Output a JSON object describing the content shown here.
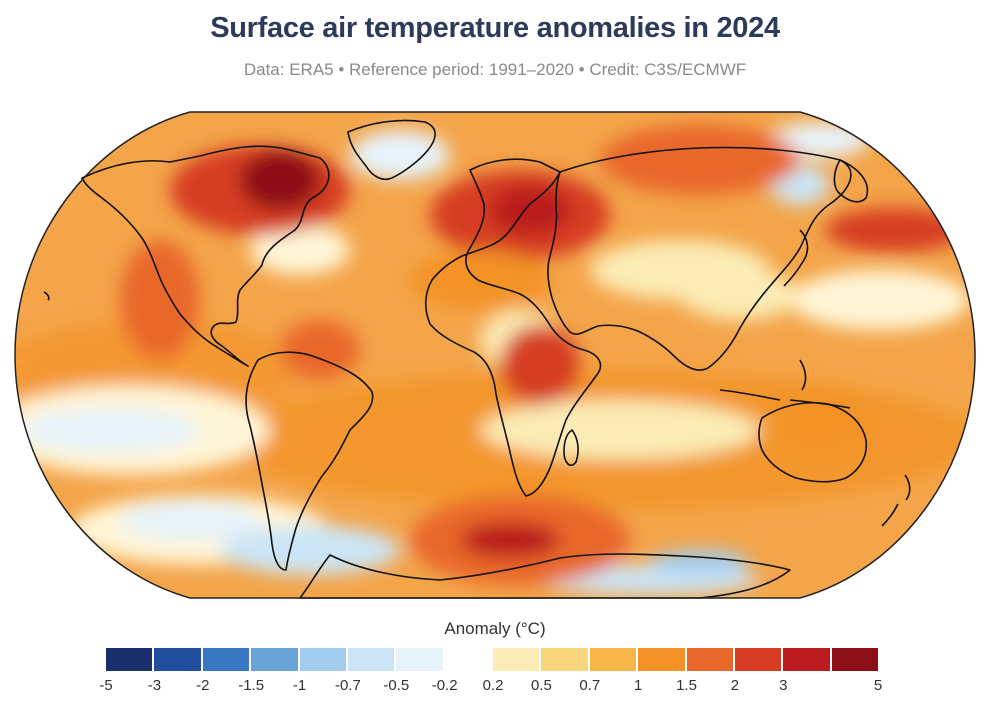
{
  "title": "Surface air temperature anomalies in 2024",
  "subtitle": "Data: ERA5 • Reference period: 1991–2020 • Credit: C3S/ECMWF",
  "legend": {
    "title": "Anomaly (°C)",
    "ticks": [
      "-5",
      "-3",
      "-2",
      "-1.5",
      "-1",
      "-0.7",
      "-0.5",
      "-0.2",
      "0.2",
      "0.5",
      "0.7",
      "1",
      "1.5",
      "2",
      "3",
      "5"
    ],
    "colors": [
      "#1a2f6b",
      "#1f4f9e",
      "#3b78c4",
      "#6aa3d8",
      "#a3cdee",
      "#cbe5f6",
      "#e6f3fa",
      "#ffffff",
      "#fbecb6",
      "#f9d67c",
      "#f7b748",
      "#f39327",
      "#e8672a",
      "#d63d24",
      "#ba1c1e",
      "#8c1016"
    ]
  },
  "map": {
    "projection": "Robinson",
    "palette": {
      "ocean_base": "#fbd98a",
      "warm": "#f29a33",
      "hot": "#e8672a",
      "very_hot": "#c42a22",
      "extreme": "#8c1016",
      "cool": "#e6f3fa",
      "cold": "#a3cdee",
      "neutral": "#fff6d8",
      "coast": "#111111"
    }
  }
}
